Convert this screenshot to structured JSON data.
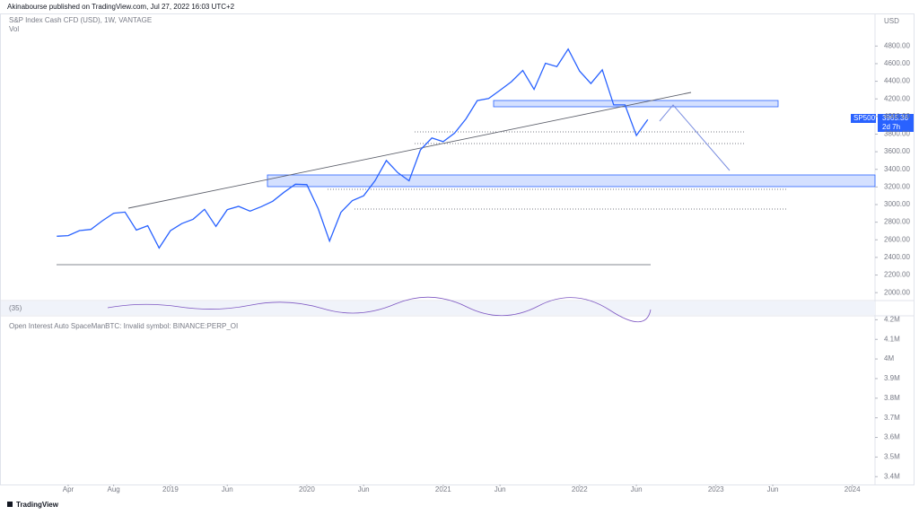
{
  "header": "Akinabourse published on TradingView.com, Jul 27, 2022 16:03 UTC+2",
  "footer": "TradingView",
  "chart_data": [
    {
      "type": "line",
      "title": "S&P Index Cash CFD (USD), 1W, VANTAGE",
      "subtitle": "Vol",
      "currency": "USD",
      "indicator_label": "(35)",
      "symbol": "SP500",
      "last_price": "3965.36",
      "countdown": "2d 7h",
      "color": "#2962ff",
      "grid": false,
      "x": [
        "2018-03",
        "2018-04",
        "2018-05",
        "2018-06",
        "2018-07",
        "2018-08",
        "2018-09",
        "2018-10",
        "2018-11",
        "2018-12",
        "2019-01",
        "2019-02",
        "2019-03",
        "2019-04",
        "2019-05",
        "2019-06",
        "2019-07",
        "2019-08",
        "2019-09",
        "2019-10",
        "2019-11",
        "2019-12",
        "2020-01",
        "2020-02",
        "2020-03",
        "2020-04",
        "2020-05",
        "2020-06",
        "2020-07",
        "2020-08",
        "2020-09",
        "2020-10",
        "2020-11",
        "2020-12",
        "2021-01",
        "2021-02",
        "2021-03",
        "2021-04",
        "2021-05",
        "2021-06",
        "2021-07",
        "2021-08",
        "2021-09",
        "2021-10",
        "2021-11",
        "2021-12",
        "2022-01",
        "2022-02",
        "2022-03",
        "2022-04",
        "2022-05",
        "2022-06",
        "2022-07"
      ],
      "values": [
        2640,
        2648,
        2705,
        2718,
        2816,
        2901,
        2914,
        2711,
        2760,
        2507,
        2704,
        2784,
        2834,
        2946,
        2752,
        2942,
        2980,
        2926,
        2977,
        3038,
        3141,
        3231,
        3226,
        2954,
        2585,
        2912,
        3044,
        3100,
        3271,
        3500,
        3363,
        3270,
        3622,
        3756,
        3714,
        3811,
        3973,
        4181,
        4204,
        4298,
        4395,
        4523,
        4308,
        4605,
        4567,
        4766,
        4516,
        4374,
        4530,
        4132,
        4132,
        3785,
        3965
      ],
      "xlim": [
        "2017-10",
        "2024-03"
      ],
      "xticks": [
        {
          "value": "2018-04",
          "label": "Apr"
        },
        {
          "value": "2018-08",
          "label": "Aug"
        },
        {
          "value": "2019-01",
          "label": "2019"
        },
        {
          "value": "2019-06",
          "label": "Jun"
        },
        {
          "value": "2020-01",
          "label": "2020"
        },
        {
          "value": "2020-06",
          "label": "Jun"
        },
        {
          "value": "2021-01",
          "label": "2021"
        },
        {
          "value": "2021-06",
          "label": "Jun"
        },
        {
          "value": "2022-01",
          "label": "2022"
        },
        {
          "value": "2022-06",
          "label": "Jun"
        },
        {
          "value": "2023-01",
          "label": "2023"
        },
        {
          "value": "2023-06",
          "label": "Jun"
        },
        {
          "value": "2024-01",
          "label": "2024"
        }
      ],
      "ylim": [
        1910,
        5170
      ],
      "yticks": [
        {
          "value": 2000,
          "label": "2000.00"
        },
        {
          "value": 2200,
          "label": "2200.00"
        },
        {
          "value": 2400,
          "label": "2400.00"
        },
        {
          "value": 2600,
          "label": "2600.00"
        },
        {
          "value": 2800,
          "label": "2800.00"
        },
        {
          "value": 3000,
          "label": "3000.00"
        },
        {
          "value": 3200,
          "label": "3200.00"
        },
        {
          "value": 3400,
          "label": "3400.00"
        },
        {
          "value": 3600,
          "label": "3600.00"
        },
        {
          "value": 3800,
          "label": "3800.00"
        },
        {
          "value": 4000,
          "label": "4000.00"
        },
        {
          "value": 4200,
          "label": "4200.00"
        },
        {
          "value": 4400,
          "label": "4400.00"
        },
        {
          "value": 4600,
          "label": "4600.00"
        },
        {
          "value": 4800,
          "label": "4800.00"
        }
      ]
    },
    {
      "type": "line",
      "title": "Open Interest Auto SpaceManBTC: Invalid symbol: BINANCE:PERP_OI",
      "ylim": [
        3360000,
        4220000
      ],
      "yticks": [
        {
          "value": 4200000,
          "label": "4.2M"
        },
        {
          "value": 4100000,
          "label": "4.1M"
        },
        {
          "value": 4000000,
          "label": "4M"
        },
        {
          "value": 3900000,
          "label": "3.9M"
        },
        {
          "value": 3800000,
          "label": "3.8M"
        },
        {
          "value": 3700000,
          "label": "3.7M"
        },
        {
          "value": 3600000,
          "label": "3.6M"
        },
        {
          "value": 3500000,
          "label": "3.5M"
        },
        {
          "value": 3400000,
          "label": "3.4M"
        }
      ]
    }
  ]
}
